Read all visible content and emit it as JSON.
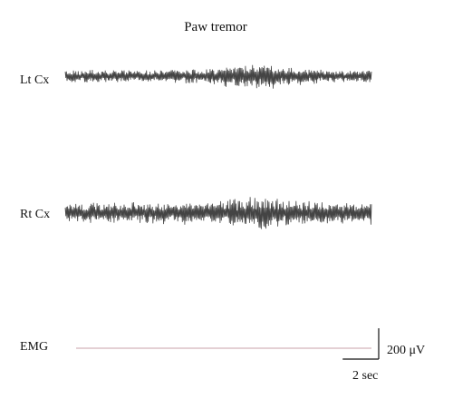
{
  "chart_data": {
    "type": "line",
    "title": "Paw tremor",
    "series": [
      {
        "name": "Lt Cx",
        "kind": "eeg",
        "base_amplitude_uV": 90,
        "burst_amplitude_uV": 180
      },
      {
        "name": "Rt Cx",
        "kind": "eeg",
        "base_amplitude_uV": 150,
        "burst_amplitude_uV": 240
      },
      {
        "name": "EMG",
        "kind": "flat",
        "base_amplitude_uV": 0,
        "burst_amplitude_uV": 0
      }
    ],
    "duration_sec": 17,
    "scale_bar": {
      "voltage_uV": 200,
      "voltage_label": "200 μV",
      "time_sec": 2,
      "time_label": "2 sec"
    },
    "grid": false,
    "legend": "none",
    "colors": {
      "trace": "#444444",
      "emg": "#c8a0a8",
      "text": "#111111"
    }
  }
}
